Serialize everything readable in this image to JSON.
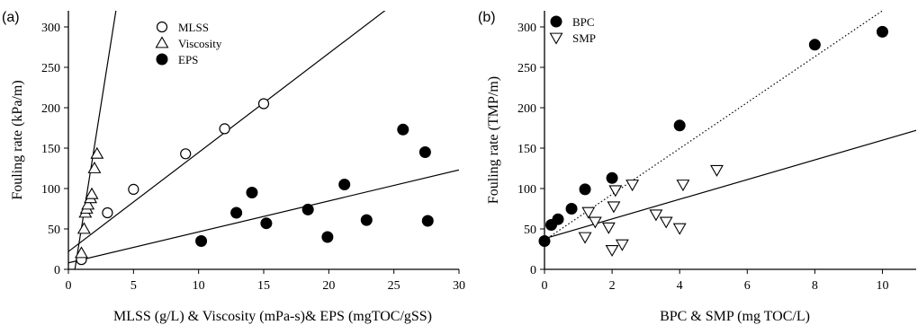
{
  "chart_data": [
    {
      "type": "scatter",
      "panel_label": "(a)",
      "title": "",
      "xlabel": "MLSS (g/L) & Viscosity (mPa-s)& EPS (mgTOC/gSS)",
      "ylabel": "Fouling rate (kPa/m)",
      "xlim": [
        0,
        30
      ],
      "ylim": [
        0,
        320
      ],
      "xticks": [
        0,
        5,
        10,
        15,
        20,
        25,
        30
      ],
      "yticks": [
        0,
        50,
        100,
        150,
        200,
        250,
        300
      ],
      "grid": false,
      "legend_position": "top-center",
      "series": [
        {
          "name": "MLSS",
          "marker": "open-circle",
          "x": [
            1.0,
            3.0,
            5.0,
            9.0,
            12.0,
            15.0
          ],
          "y": [
            12,
            70,
            99,
            143,
            174,
            205
          ]
        },
        {
          "name": "Viscosity",
          "marker": "open-triangle-up",
          "x": [
            1.0,
            1.2,
            1.3,
            1.4,
            1.5,
            1.7,
            1.8,
            2.0,
            2.2
          ],
          "y": [
            20,
            50,
            70,
            75,
            80,
            88,
            93,
            125,
            143
          ]
        },
        {
          "name": "EPS",
          "marker": "filled-circle",
          "x": [
            10.2,
            12.9,
            14.1,
            15.2,
            18.4,
            19.9,
            21.2,
            22.9,
            25.7,
            27.4,
            27.6
          ],
          "y": [
            35,
            70,
            95,
            57,
            74,
            40,
            105,
            61,
            173,
            145,
            60
          ]
        }
      ],
      "fit_lines": [
        {
          "for": "Viscosity",
          "style": "solid",
          "x": [
            0.5,
            3.65
          ],
          "y": [
            0,
            320
          ]
        },
        {
          "for": "MLSS",
          "style": "solid",
          "x": [
            0,
            30
          ],
          "y": [
            22,
            390
          ]
        },
        {
          "for": "EPS",
          "style": "solid",
          "x": [
            0,
            30
          ],
          "y": [
            8,
            123
          ]
        }
      ]
    },
    {
      "type": "scatter",
      "panel_label": "(b)",
      "title": "",
      "xlabel": "BPC & SMP (mg TOC/L)",
      "ylabel": "Fouling rate (TMP/m)",
      "xlim": [
        0,
        11
      ],
      "ylim": [
        0,
        320
      ],
      "xticks": [
        0,
        2,
        4,
        6,
        8,
        10
      ],
      "yticks": [
        0,
        50,
        100,
        150,
        200,
        250,
        300
      ],
      "grid": false,
      "legend_position": "top-left",
      "series": [
        {
          "name": "BPC",
          "marker": "filled-circle",
          "x": [
            0.0,
            0.2,
            0.4,
            0.8,
            1.2,
            2.0,
            4.0,
            8.0,
            10.0
          ],
          "y": [
            35,
            55,
            62,
            75,
            99,
            113,
            178,
            278,
            294
          ]
        },
        {
          "name": "SMP",
          "marker": "open-triangle-down",
          "x": [
            1.2,
            1.3,
            1.5,
            1.9,
            2.0,
            2.05,
            2.1,
            2.3,
            2.6,
            3.3,
            3.6,
            4.0,
            4.1,
            5.1
          ],
          "y": [
            40,
            71,
            59,
            52,
            24,
            78,
            98,
            31,
            105,
            68,
            59,
            51,
            105,
            123
          ]
        }
      ],
      "fit_lines": [
        {
          "for": "BPC",
          "style": "dotted",
          "x": [
            0,
            10
          ],
          "y": [
            36,
            320
          ]
        },
        {
          "for": "SMP",
          "style": "solid",
          "x": [
            0,
            11
          ],
          "y": [
            38,
            172
          ]
        }
      ]
    }
  ]
}
